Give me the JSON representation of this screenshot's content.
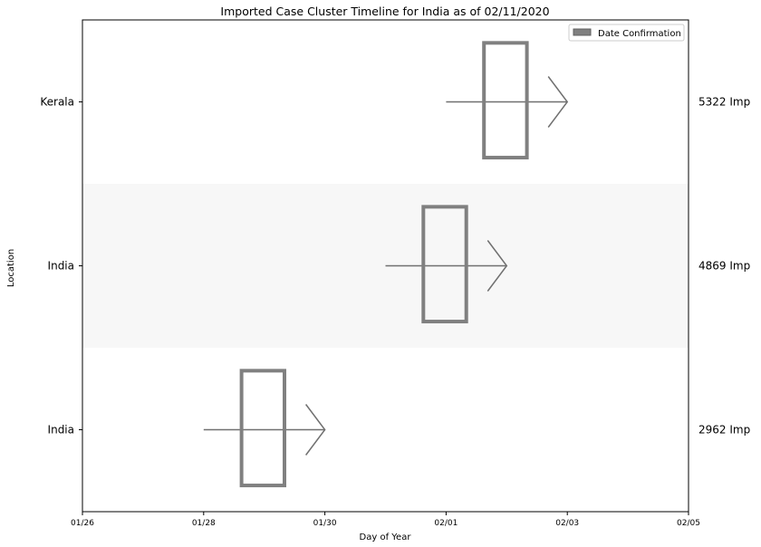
{
  "chart_data": {
    "type": "timeline",
    "title": "Imported Case Cluster Timeline for India as of 02/11/2020",
    "xlabel": "Day of Year",
    "ylabel": "Location",
    "x_ticks": [
      "01/26",
      "01/28",
      "01/30",
      "02/01",
      "02/03",
      "02/05"
    ],
    "x_range": [
      "01/26",
      "02/05"
    ],
    "legend": {
      "position": "top-right",
      "label": "Date Confirmation"
    },
    "rows": [
      {
        "location": "Kerala",
        "case_label": "5322 Imp",
        "arrow_start": "02/01",
        "arrow_end": "02/03",
        "box_start": "02/01 15:00",
        "box_end": "02/02 08:00",
        "shaded": false
      },
      {
        "location": "India",
        "case_label": "4869 Imp",
        "arrow_start": "01/31",
        "arrow_end": "02/02",
        "box_start": "01/31 15:00",
        "box_end": "02/01 08:00",
        "shaded": true
      },
      {
        "location": "India",
        "case_label": "2962 Imp",
        "arrow_start": "01/28",
        "arrow_end": "01/30",
        "box_start": "01/28 15:00",
        "box_end": "01/29 08:00",
        "shaded": false
      }
    ],
    "colors": {
      "box": "#808080",
      "arrow": "#707070",
      "shade": "#f7f7f7"
    }
  }
}
